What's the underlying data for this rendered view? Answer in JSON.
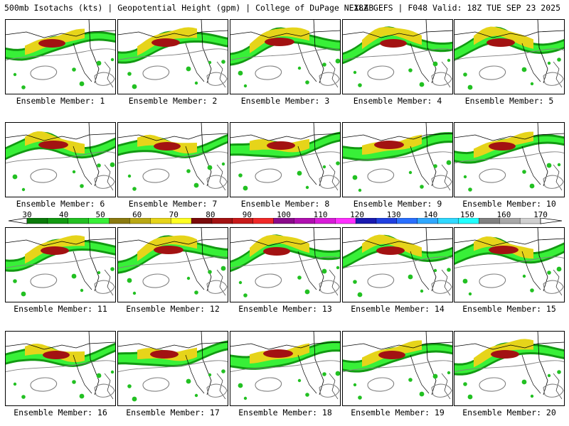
{
  "header": {
    "title": "500mb Isotachs (kts) | Geopotential Height (gpm) | College of DuPage NEXLAB",
    "run_info": "18Z GEFS | F048 Valid: 18Z TUE SEP 23 2025"
  },
  "caption_prefix": "Ensemble Member:",
  "members": [
    1,
    2,
    3,
    4,
    5,
    6,
    7,
    8,
    9,
    10,
    11,
    12,
    13,
    14,
    15,
    16,
    17,
    18,
    19,
    20
  ],
  "colorbar": {
    "labels": [
      "30",
      "40",
      "50",
      "60",
      "70",
      "80",
      "90",
      "100",
      "110",
      "120",
      "130",
      "140",
      "150",
      "160",
      "170"
    ],
    "colors": [
      "#0a7a0a",
      "#129a12",
      "#22c022",
      "#38f038",
      "#8a7a10",
      "#b9a814",
      "#e6d41a",
      "#ffff22",
      "#7a0a0a",
      "#a31212",
      "#c81a1a",
      "#f02828",
      "#8a0a8a",
      "#b010b0",
      "#d81cd8",
      "#ff30ff",
      "#1a1ab0",
      "#2040e0",
      "#2a70ff",
      "#30a8ff",
      "#30d8ff",
      "#20ffff",
      "#808080",
      "#a8a8a8",
      "#d0d0d0"
    ]
  }
}
